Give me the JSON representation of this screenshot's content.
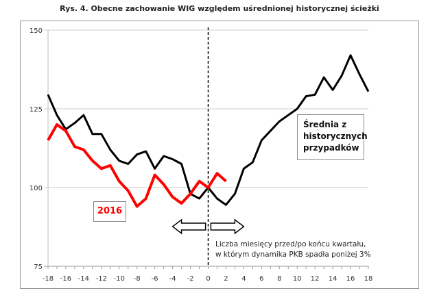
{
  "chart_data": {
    "type": "line",
    "title": "Rys. 4. Obecne zachowanie WIG względem uśrednionej historycznej ścieżki",
    "xlabel": "Liczba miesięcy przed/po końcu kwartału, w którym dynamika PKB spadła poniżej 3%",
    "xlim": [
      -18,
      18
    ],
    "ylim": [
      75,
      150
    ],
    "yticks": [
      75,
      100,
      125,
      150
    ],
    "xticks": [
      -18,
      -16,
      -14,
      -12,
      -10,
      -8,
      -6,
      -4,
      -2,
      0,
      2,
      4,
      6,
      8,
      10,
      12,
      14,
      16,
      18
    ],
    "grid": true,
    "series": [
      {
        "name": "Średnia z historycznych przypadków",
        "color": "#000000",
        "x": [
          -18,
          -17,
          -16,
          -15,
          -14,
          -13,
          -12,
          -11,
          -10,
          -9,
          -8,
          -7,
          -6,
          -5,
          -4,
          -3,
          -2,
          -1,
          0,
          1,
          2,
          3,
          4,
          5,
          6,
          7,
          8,
          9,
          10,
          11,
          12,
          13,
          14,
          15,
          16,
          17,
          18
        ],
        "y": [
          129.5,
          123,
          118.5,
          120.5,
          123,
          117,
          117,
          112,
          108.5,
          107.5,
          110.5,
          111.5,
          106,
          110,
          109,
          107.5,
          98,
          96.5,
          100,
          96.5,
          94.5,
          98,
          106,
          108,
          115,
          118,
          121,
          123,
          125,
          129,
          129.5,
          135,
          131,
          135.5,
          142,
          136,
          130.5
        ]
      },
      {
        "name": "2016",
        "color": "#ff0000",
        "x": [
          -18,
          -17,
          -16,
          -15,
          -14,
          -13,
          -12,
          -11,
          -10,
          -9,
          -8,
          -7,
          -6,
          -5,
          -4,
          -3,
          -2,
          -1,
          0,
          1,
          2
        ],
        "y": [
          115,
          120,
          118,
          113,
          112,
          108.5,
          106,
          107,
          102,
          99,
          94,
          96.5,
          104,
          101,
          97,
          95,
          98,
          102,
          100,
          104.5,
          102
        ]
      }
    ],
    "annotations": {
      "label_2016": "2016",
      "label_avg": [
        "Średnia z",
        "historycznych",
        "przypadków"
      ],
      "note": [
        "Liczba miesięcy przed/po końcu kwartału,",
        "w którym dynamika PKB spadła poniżej 3%"
      ]
    }
  }
}
